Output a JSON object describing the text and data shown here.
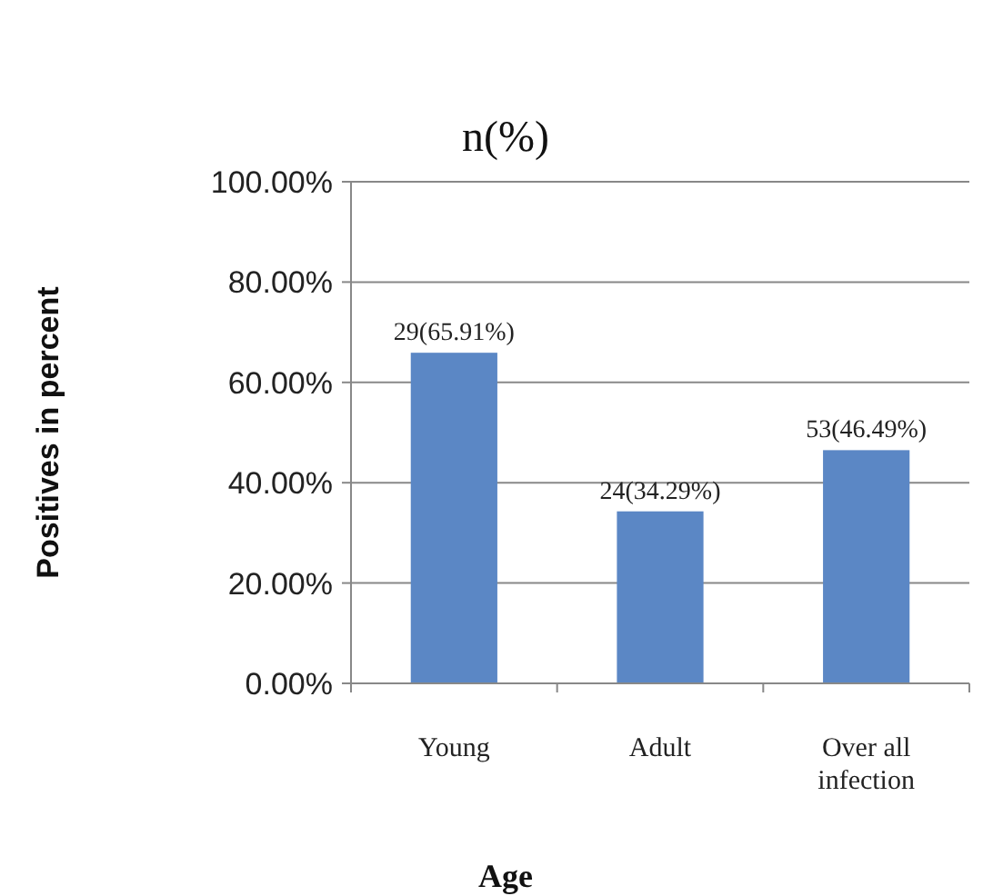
{
  "chart_data": {
    "type": "bar",
    "title": "n(%)",
    "xlabel": "Age",
    "ylabel": "Positives in percent",
    "categories": [
      "Young",
      "Adult",
      "Over all infection"
    ],
    "values": [
      65.91,
      34.29,
      46.49
    ],
    "color": "#5b87c5",
    "value_labels": [
      "29(65.91%)",
      "24(34.29%)",
      "53(46.49%)"
    ],
    "ylim": [
      0,
      100
    ],
    "yticks": [
      {
        "value": 0,
        "label": "0.00%"
      },
      {
        "value": 20,
        "label": "20.00%"
      },
      {
        "value": 40,
        "label": "40.00%"
      },
      {
        "value": 60,
        "label": "60.00%"
      },
      {
        "value": 80,
        "label": "80.00%"
      },
      {
        "value": 100,
        "label": "100.00%"
      }
    ],
    "grid": "y"
  }
}
